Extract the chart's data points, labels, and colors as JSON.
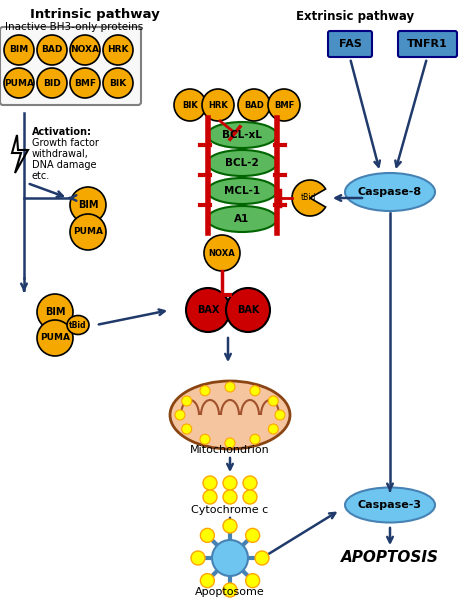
{
  "title": "Intrinsic pathway",
  "subtitle_inactive": "Inactive BH3-only proteins",
  "extrinsic_title": "Extrinsic pathway",
  "orange": "#F5A800",
  "orange_dark": "#E08C00",
  "green": "#5CB85C",
  "green_dark": "#4CAE4C",
  "red": "#CC0000",
  "blue_light": "#6EC6F0",
  "blue_box": "#4A90C4",
  "yellow": "#FFFF00",
  "dark_blue_arrow": "#1F3A6B",
  "bg": "#FFFFFF",
  "inactive_proteins": [
    "BIM",
    "BAD",
    "NOXA",
    "HRK",
    "PUMA",
    "BID",
    "BMF",
    "BIK"
  ],
  "bcl_proteins": [
    "BCL-xL",
    "BCL-2",
    "MCL-1",
    "A1"
  ],
  "bh3_active_top": [
    "BIK",
    "HRK",
    "BAD",
    "BMF"
  ],
  "extrinsic_boxes": [
    "FAS",
    "TNFR1"
  ],
  "apoptosis_label": "APOPTOSIS",
  "mitochondrion_label": "Mitochondrion",
  "cytochrome_label": "Cytochrome c",
  "apoptosome_label": "Apoptosome",
  "caspase8_label": "Caspase-8",
  "caspase3_label": "Caspase-3"
}
